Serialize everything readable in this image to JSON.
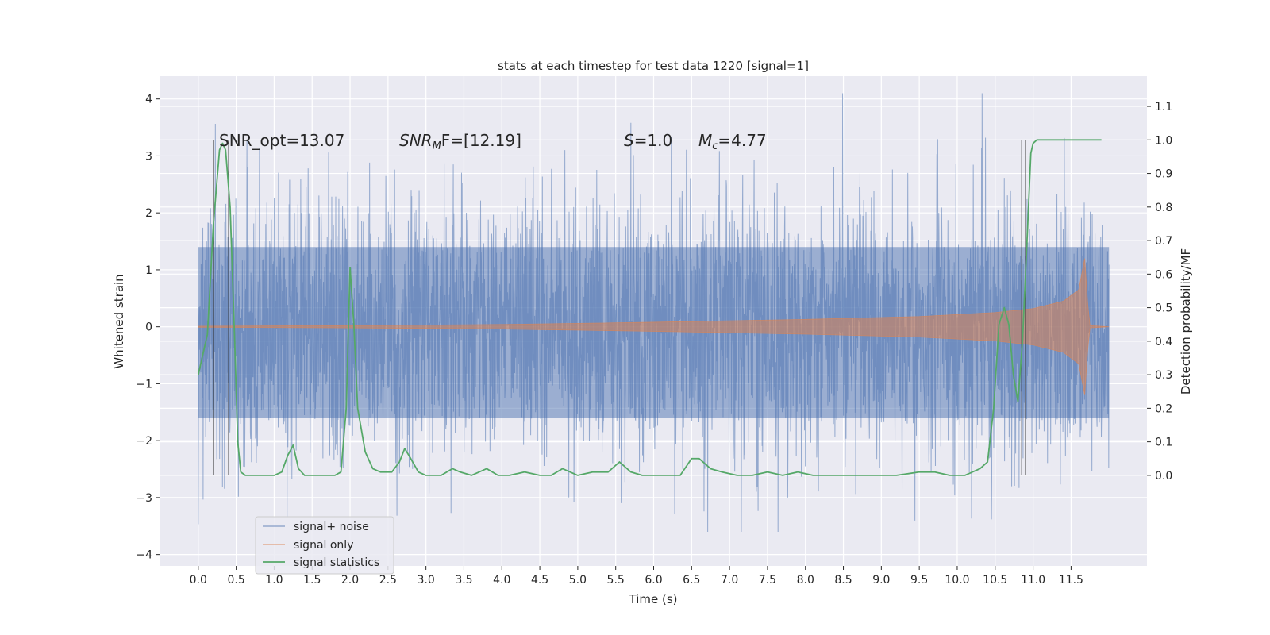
{
  "chart_data": {
    "type": "line",
    "title": "stats at each timestep for test data 1220 [signal=1]",
    "xlabel": "Time (s)",
    "ylabel": "Whitened strain",
    "y2label": "Detection probability/MF",
    "xlim": [
      -0.5,
      12.5
    ],
    "ylim": [
      -4.2,
      4.4
    ],
    "y2lim": [
      -0.27,
      1.19
    ],
    "x_ticks": [
      0.0,
      0.5,
      1.0,
      1.5,
      2.0,
      2.5,
      3.0,
      3.5,
      4.0,
      4.5,
      5.0,
      5.5,
      6.0,
      6.5,
      7.0,
      7.5,
      8.0,
      8.5,
      9.0,
      9.5,
      10.0,
      10.5,
      11.0,
      11.5
    ],
    "x_tick_labels": [
      "0.0",
      "0.5",
      "1.0",
      "1.5",
      "2.0",
      "2.5",
      "3.0",
      "3.5",
      "4.0",
      "4.5",
      "5.0",
      "5.5",
      "6.0",
      "6.5",
      "7.0",
      "7.5",
      "8.0",
      "8.5",
      "9.0",
      "9.5",
      "10.0",
      "10.5",
      "11.0",
      "11.5"
    ],
    "y_ticks": [
      -4,
      -3,
      -2,
      -1,
      0,
      1,
      2,
      3,
      4
    ],
    "y_tick_labels": [
      "−4",
      "−3",
      "−2",
      "−1",
      "0",
      "1",
      "2",
      "3",
      "4"
    ],
    "y2_ticks": [
      0.0,
      0.1,
      0.2,
      0.3,
      0.4,
      0.5,
      0.6,
      0.7,
      0.8,
      0.9,
      1.0,
      1.1
    ],
    "y2_tick_labels": [
      "0.0",
      "0.1",
      "0.2",
      "0.3",
      "0.4",
      "0.5",
      "0.6",
      "0.7",
      "0.8",
      "0.9",
      "1.0",
      "1.1"
    ],
    "grid": true,
    "legend_position": "lower-left",
    "annotations": {
      "snr_opt": "SNR_opt=13.07",
      "snr_mf_base": "SNR",
      "snr_mf_sub": "M",
      "snr_mf_rest": "F=[12.19]",
      "s_base": "S",
      "s_rest": "=1.0",
      "mc_base": "M",
      "mc_sub": "c",
      "mc_rest": "=4.77"
    },
    "series": [
      {
        "name": "signal+ noise",
        "color": "#4c72b0",
        "axis": "left",
        "description_range": {
          "x_start": 0.0,
          "x_end": 12.0,
          "band_low": -1.6,
          "band_high": 1.4,
          "peak_high": 4.1,
          "peak_low": -3.6
        }
      },
      {
        "name": "signal only",
        "color": "#dd8452",
        "axis": "left",
        "envelope": {
          "x": [
            0.0,
            2.0,
            4.0,
            6.0,
            8.0,
            9.5,
            10.5,
            11.0,
            11.4,
            11.6,
            11.68,
            11.72,
            11.75,
            12.0
          ],
          "amp": [
            0.01,
            0.02,
            0.04,
            0.08,
            0.13,
            0.18,
            0.25,
            0.32,
            0.45,
            0.65,
            1.2,
            0.4,
            0.02,
            0.0
          ]
        }
      },
      {
        "name": "signal statistics",
        "color": "#55a868",
        "axis": "right",
        "x": [
          0.0,
          0.12,
          0.2,
          0.28,
          0.32,
          0.36,
          0.42,
          0.48,
          0.52,
          0.56,
          0.62,
          0.7,
          0.8,
          0.9,
          1.0,
          1.1,
          1.18,
          1.25,
          1.32,
          1.4,
          1.5,
          1.6,
          1.7,
          1.8,
          1.88,
          1.95,
          2.0,
          2.05,
          2.1,
          2.2,
          2.3,
          2.4,
          2.55,
          2.65,
          2.72,
          2.8,
          2.9,
          3.0,
          3.2,
          3.35,
          3.45,
          3.6,
          3.8,
          3.95,
          4.1,
          4.3,
          4.5,
          4.65,
          4.8,
          5.0,
          5.2,
          5.4,
          5.55,
          5.7,
          5.85,
          6.0,
          6.2,
          6.35,
          6.5,
          6.6,
          6.75,
          6.9,
          7.1,
          7.3,
          7.5,
          7.7,
          7.9,
          8.1,
          8.4,
          8.8,
          9.2,
          9.5,
          9.7,
          9.9,
          10.1,
          10.3,
          10.4,
          10.48,
          10.55,
          10.62,
          10.68,
          10.74,
          10.8,
          10.86,
          10.92,
          10.97,
          11.0,
          11.05,
          11.2,
          11.5,
          11.7,
          11.9
        ],
        "values": [
          0.3,
          0.42,
          0.75,
          0.97,
          0.99,
          0.97,
          0.8,
          0.4,
          0.1,
          0.01,
          0.0,
          0.0,
          0.0,
          0.0,
          0.0,
          0.01,
          0.06,
          0.09,
          0.02,
          0.0,
          0.0,
          0.0,
          0.0,
          0.0,
          0.01,
          0.2,
          0.62,
          0.45,
          0.2,
          0.07,
          0.02,
          0.01,
          0.01,
          0.04,
          0.08,
          0.05,
          0.01,
          0.0,
          0.0,
          0.02,
          0.01,
          0.0,
          0.02,
          0.0,
          0.0,
          0.01,
          0.0,
          0.0,
          0.02,
          0.0,
          0.01,
          0.01,
          0.04,
          0.01,
          0.0,
          0.0,
          0.0,
          0.0,
          0.05,
          0.05,
          0.02,
          0.01,
          0.0,
          0.0,
          0.01,
          0.0,
          0.01,
          0.0,
          0.0,
          0.0,
          0.0,
          0.01,
          0.01,
          0.0,
          0.0,
          0.02,
          0.04,
          0.2,
          0.45,
          0.5,
          0.45,
          0.3,
          0.22,
          0.4,
          0.7,
          0.96,
          0.99,
          1.0,
          1.0,
          1.0,
          1.0,
          1.0
        ]
      }
    ],
    "vertical_markers": [
      0.2,
      0.4,
      10.85,
      10.9
    ]
  }
}
